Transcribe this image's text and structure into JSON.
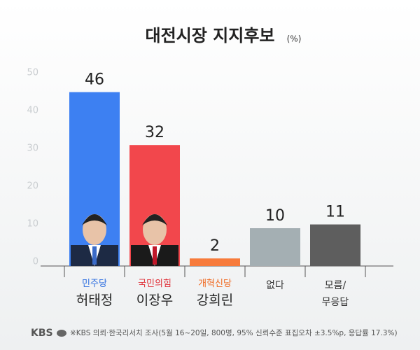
{
  "chart_data": {
    "type": "bar",
    "title": "대전시장 지지후보",
    "unit": "(%)",
    "categories": [
      "허태정",
      "이장우",
      "강희린",
      "없다",
      "모름/\n무응답"
    ],
    "parties": [
      "민주당",
      "국민의힘",
      "개혁신당",
      null,
      null
    ],
    "party_colors": [
      "#2f6fe0",
      "#e0323a",
      "#f06a22",
      null,
      null
    ],
    "values": [
      46,
      32,
      2,
      10,
      11
    ],
    "colors": [
      "#3d80f2",
      "#f2474c",
      "#f77b3b",
      "#a4afb3",
      "#5e5e5e"
    ],
    "ylim": [
      0,
      50
    ],
    "yticks": [
      0,
      10,
      20,
      30,
      40,
      50
    ],
    "grid": false,
    "logo": "KBS",
    "source": "※KBS 의뢰·한국리서치 조사(5월 16~20일, 800명, 95% 신뢰수준 표집오차 ±3.5%p, 응답률 17.3%)"
  }
}
